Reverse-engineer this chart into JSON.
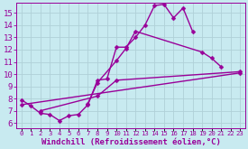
{
  "background_color": "#c8eaf0",
  "grid_color": "#b0d0d8",
  "line_color": "#990099",
  "marker": "D",
  "markersize": 2.5,
  "linewidth": 1.0,
  "xlabel": "Windchill (Refroidissement éolien,°C)",
  "xlabel_fontsize": 6.5,
  "ylabel_ticks": [
    6,
    7,
    8,
    9,
    10,
    11,
    12,
    13,
    14,
    15
  ],
  "ytick_fontsize": 6.5,
  "xtick_fontsize": 5.2,
  "xtick_labels": [
    "0",
    "1",
    "2",
    "3",
    "4",
    "5",
    "6",
    "7",
    "8",
    "9",
    "10",
    "11",
    "12",
    "13",
    "14",
    "15",
    "16",
    "17",
    "18",
    "19",
    "20",
    "21",
    "22",
    "23"
  ],
  "xlim": [
    -0.5,
    23.5
  ],
  "ylim": [
    5.6,
    15.8
  ],
  "lines": [
    {
      "x": [
        0,
        1,
        2,
        3,
        4,
        5,
        6,
        7,
        8,
        9,
        10,
        11,
        12,
        13,
        14,
        15,
        16,
        17,
        18
      ],
      "y": [
        7.9,
        7.4,
        6.8,
        6.7,
        6.2,
        6.6,
        6.7,
        7.5,
        9.5,
        9.6,
        12.2,
        12.2,
        13.0,
        14.0,
        15.6,
        15.7,
        14.6,
        15.4,
        13.5
      ]
    },
    {
      "x": [
        7,
        8,
        10,
        11,
        12,
        19,
        20,
        21
      ],
      "y": [
        7.6,
        9.3,
        11.1,
        12.1,
        13.5,
        11.8,
        11.3,
        10.6
      ]
    },
    {
      "x": [
        2,
        8,
        10,
        23
      ],
      "y": [
        7.0,
        8.2,
        9.5,
        10.2
      ]
    },
    {
      "x": [
        0,
        23
      ],
      "y": [
        7.5,
        10.1
      ]
    }
  ]
}
